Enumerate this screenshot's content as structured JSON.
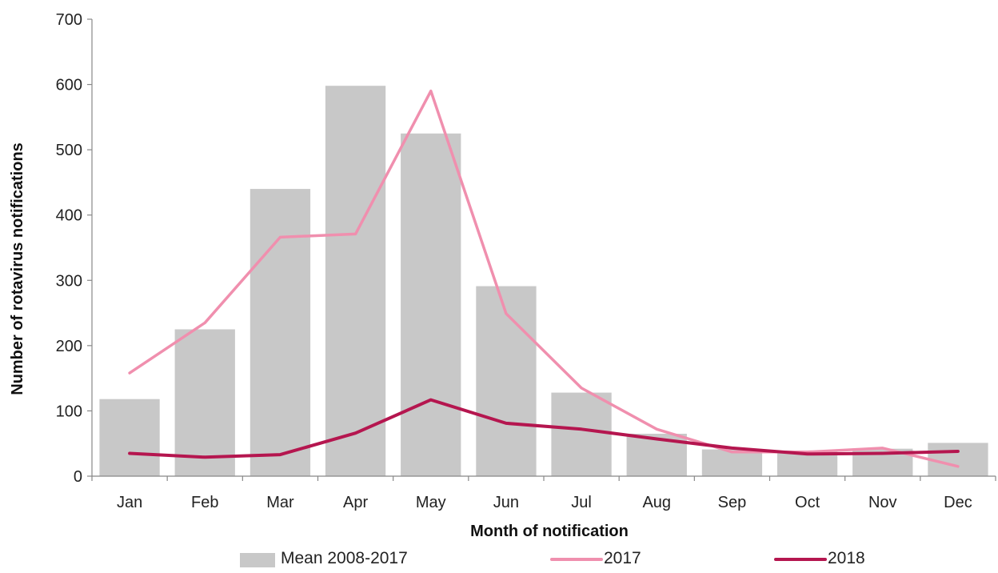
{
  "chart_data": {
    "type": "bar",
    "title": "",
    "xlabel": "Month of notification",
    "ylabel": "Number of rotavirus notifications",
    "categories": [
      "Jan",
      "Feb",
      "Mar",
      "Apr",
      "May",
      "Jun",
      "Jul",
      "Aug",
      "Sep",
      "Oct",
      "Nov",
      "Dec"
    ],
    "ylim": [
      0,
      700
    ],
    "yticks": [
      0,
      100,
      200,
      300,
      400,
      500,
      600,
      700
    ],
    "grid": false,
    "legend_position": "bottom",
    "series": [
      {
        "name": "Mean 2008-2017",
        "type": "bar",
        "color": "#c8c8c8",
        "values": [
          118,
          225,
          440,
          598,
          525,
          291,
          128,
          65,
          41,
          38,
          42,
          51
        ]
      },
      {
        "name": "2017",
        "type": "line",
        "color": "#f08fae",
        "values": [
          158,
          235,
          366,
          371,
          590,
          249,
          135,
          72,
          37,
          37,
          43,
          15
        ]
      },
      {
        "name": "2018",
        "type": "line",
        "color": "#b5164f",
        "values": [
          35,
          29,
          33,
          66,
          117,
          81,
          72,
          57,
          43,
          34,
          35,
          38
        ]
      }
    ]
  }
}
